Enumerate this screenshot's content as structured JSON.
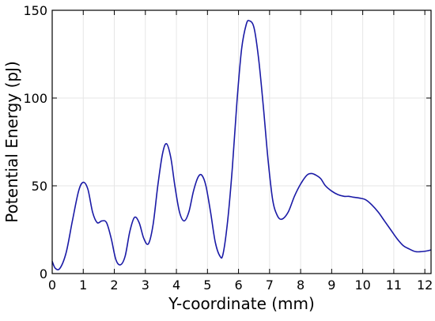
{
  "chart_data": {
    "type": "line",
    "title": "",
    "xlabel": "Y-coordinate (mm)",
    "ylabel": "Potential Energy (pJ)",
    "xlim": [
      0,
      12.2
    ],
    "ylim": [
      0,
      150
    ],
    "grid": true,
    "legend": "none",
    "x_ticks": [
      0,
      1,
      2,
      3,
      4,
      5,
      6,
      7,
      8,
      9,
      10,
      11,
      12
    ],
    "y_ticks": [
      0,
      50,
      100,
      150
    ],
    "series": [
      {
        "color": "#1a1aa6",
        "points": [
          [
            0.0,
            7
          ],
          [
            0.1,
            3
          ],
          [
            0.25,
            3
          ],
          [
            0.45,
            12
          ],
          [
            0.65,
            30
          ],
          [
            0.85,
            47
          ],
          [
            1.0,
            52
          ],
          [
            1.15,
            48
          ],
          [
            1.3,
            35
          ],
          [
            1.45,
            29
          ],
          [
            1.6,
            30
          ],
          [
            1.75,
            29
          ],
          [
            1.9,
            20
          ],
          [
            2.05,
            8
          ],
          [
            2.2,
            5
          ],
          [
            2.35,
            10
          ],
          [
            2.5,
            24
          ],
          [
            2.65,
            32
          ],
          [
            2.8,
            29
          ],
          [
            2.95,
            20
          ],
          [
            3.1,
            17
          ],
          [
            3.25,
            28
          ],
          [
            3.4,
            50
          ],
          [
            3.55,
            68
          ],
          [
            3.68,
            74
          ],
          [
            3.82,
            66
          ],
          [
            3.95,
            50
          ],
          [
            4.1,
            35
          ],
          [
            4.25,
            30
          ],
          [
            4.4,
            35
          ],
          [
            4.55,
            47
          ],
          [
            4.7,
            55
          ],
          [
            4.82,
            56
          ],
          [
            4.95,
            50
          ],
          [
            5.1,
            35
          ],
          [
            5.25,
            18
          ],
          [
            5.4,
            10
          ],
          [
            5.5,
            11
          ],
          [
            5.65,
            30
          ],
          [
            5.8,
            60
          ],
          [
            5.95,
            98
          ],
          [
            6.1,
            128
          ],
          [
            6.25,
            142
          ],
          [
            6.35,
            144
          ],
          [
            6.5,
            140
          ],
          [
            6.65,
            122
          ],
          [
            6.8,
            95
          ],
          [
            6.95,
            65
          ],
          [
            7.1,
            42
          ],
          [
            7.25,
            33
          ],
          [
            7.4,
            31
          ],
          [
            7.6,
            35
          ],
          [
            7.8,
            44
          ],
          [
            8.0,
            51
          ],
          [
            8.2,
            56
          ],
          [
            8.35,
            57
          ],
          [
            8.5,
            56
          ],
          [
            8.65,
            54
          ],
          [
            8.8,
            50
          ],
          [
            9.0,
            47
          ],
          [
            9.2,
            45
          ],
          [
            9.4,
            44
          ],
          [
            9.55,
            44
          ],
          [
            9.7,
            43.5
          ],
          [
            9.9,
            43
          ],
          [
            10.1,
            42
          ],
          [
            10.3,
            39
          ],
          [
            10.5,
            35
          ],
          [
            10.7,
            30
          ],
          [
            10.9,
            25
          ],
          [
            11.1,
            20
          ],
          [
            11.3,
            16
          ],
          [
            11.5,
            14
          ],
          [
            11.7,
            12.5
          ],
          [
            11.9,
            12.5
          ],
          [
            12.1,
            13
          ],
          [
            12.2,
            13.5
          ]
        ]
      }
    ]
  }
}
